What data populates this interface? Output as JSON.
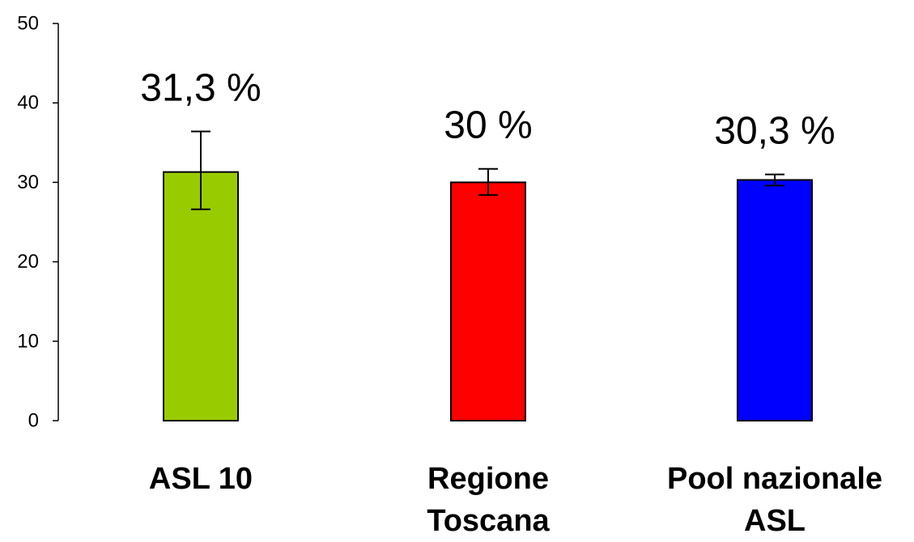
{
  "chart_data": {
    "type": "bar",
    "title": "",
    "xlabel": "",
    "ylabel": "",
    "ylim": [
      0,
      50
    ],
    "yticks": [
      0,
      10,
      20,
      30,
      40,
      50
    ],
    "grid": false,
    "categories": [
      [
        "ASL 10"
      ],
      [
        "Regione",
        "Toscana"
      ],
      [
        "Pool nazionale",
        "ASL"
      ]
    ],
    "values": [
      31.3,
      30,
      30.3
    ],
    "error_low": [
      26.6,
      28.4,
      29.6
    ],
    "error_high": [
      36.4,
      31.7,
      31.0
    ],
    "data_labels": [
      "31,3 %",
      "30 %",
      "30,3 %"
    ],
    "colors": [
      "#99CC00",
      "#FF0000",
      "#0000FF"
    ]
  }
}
